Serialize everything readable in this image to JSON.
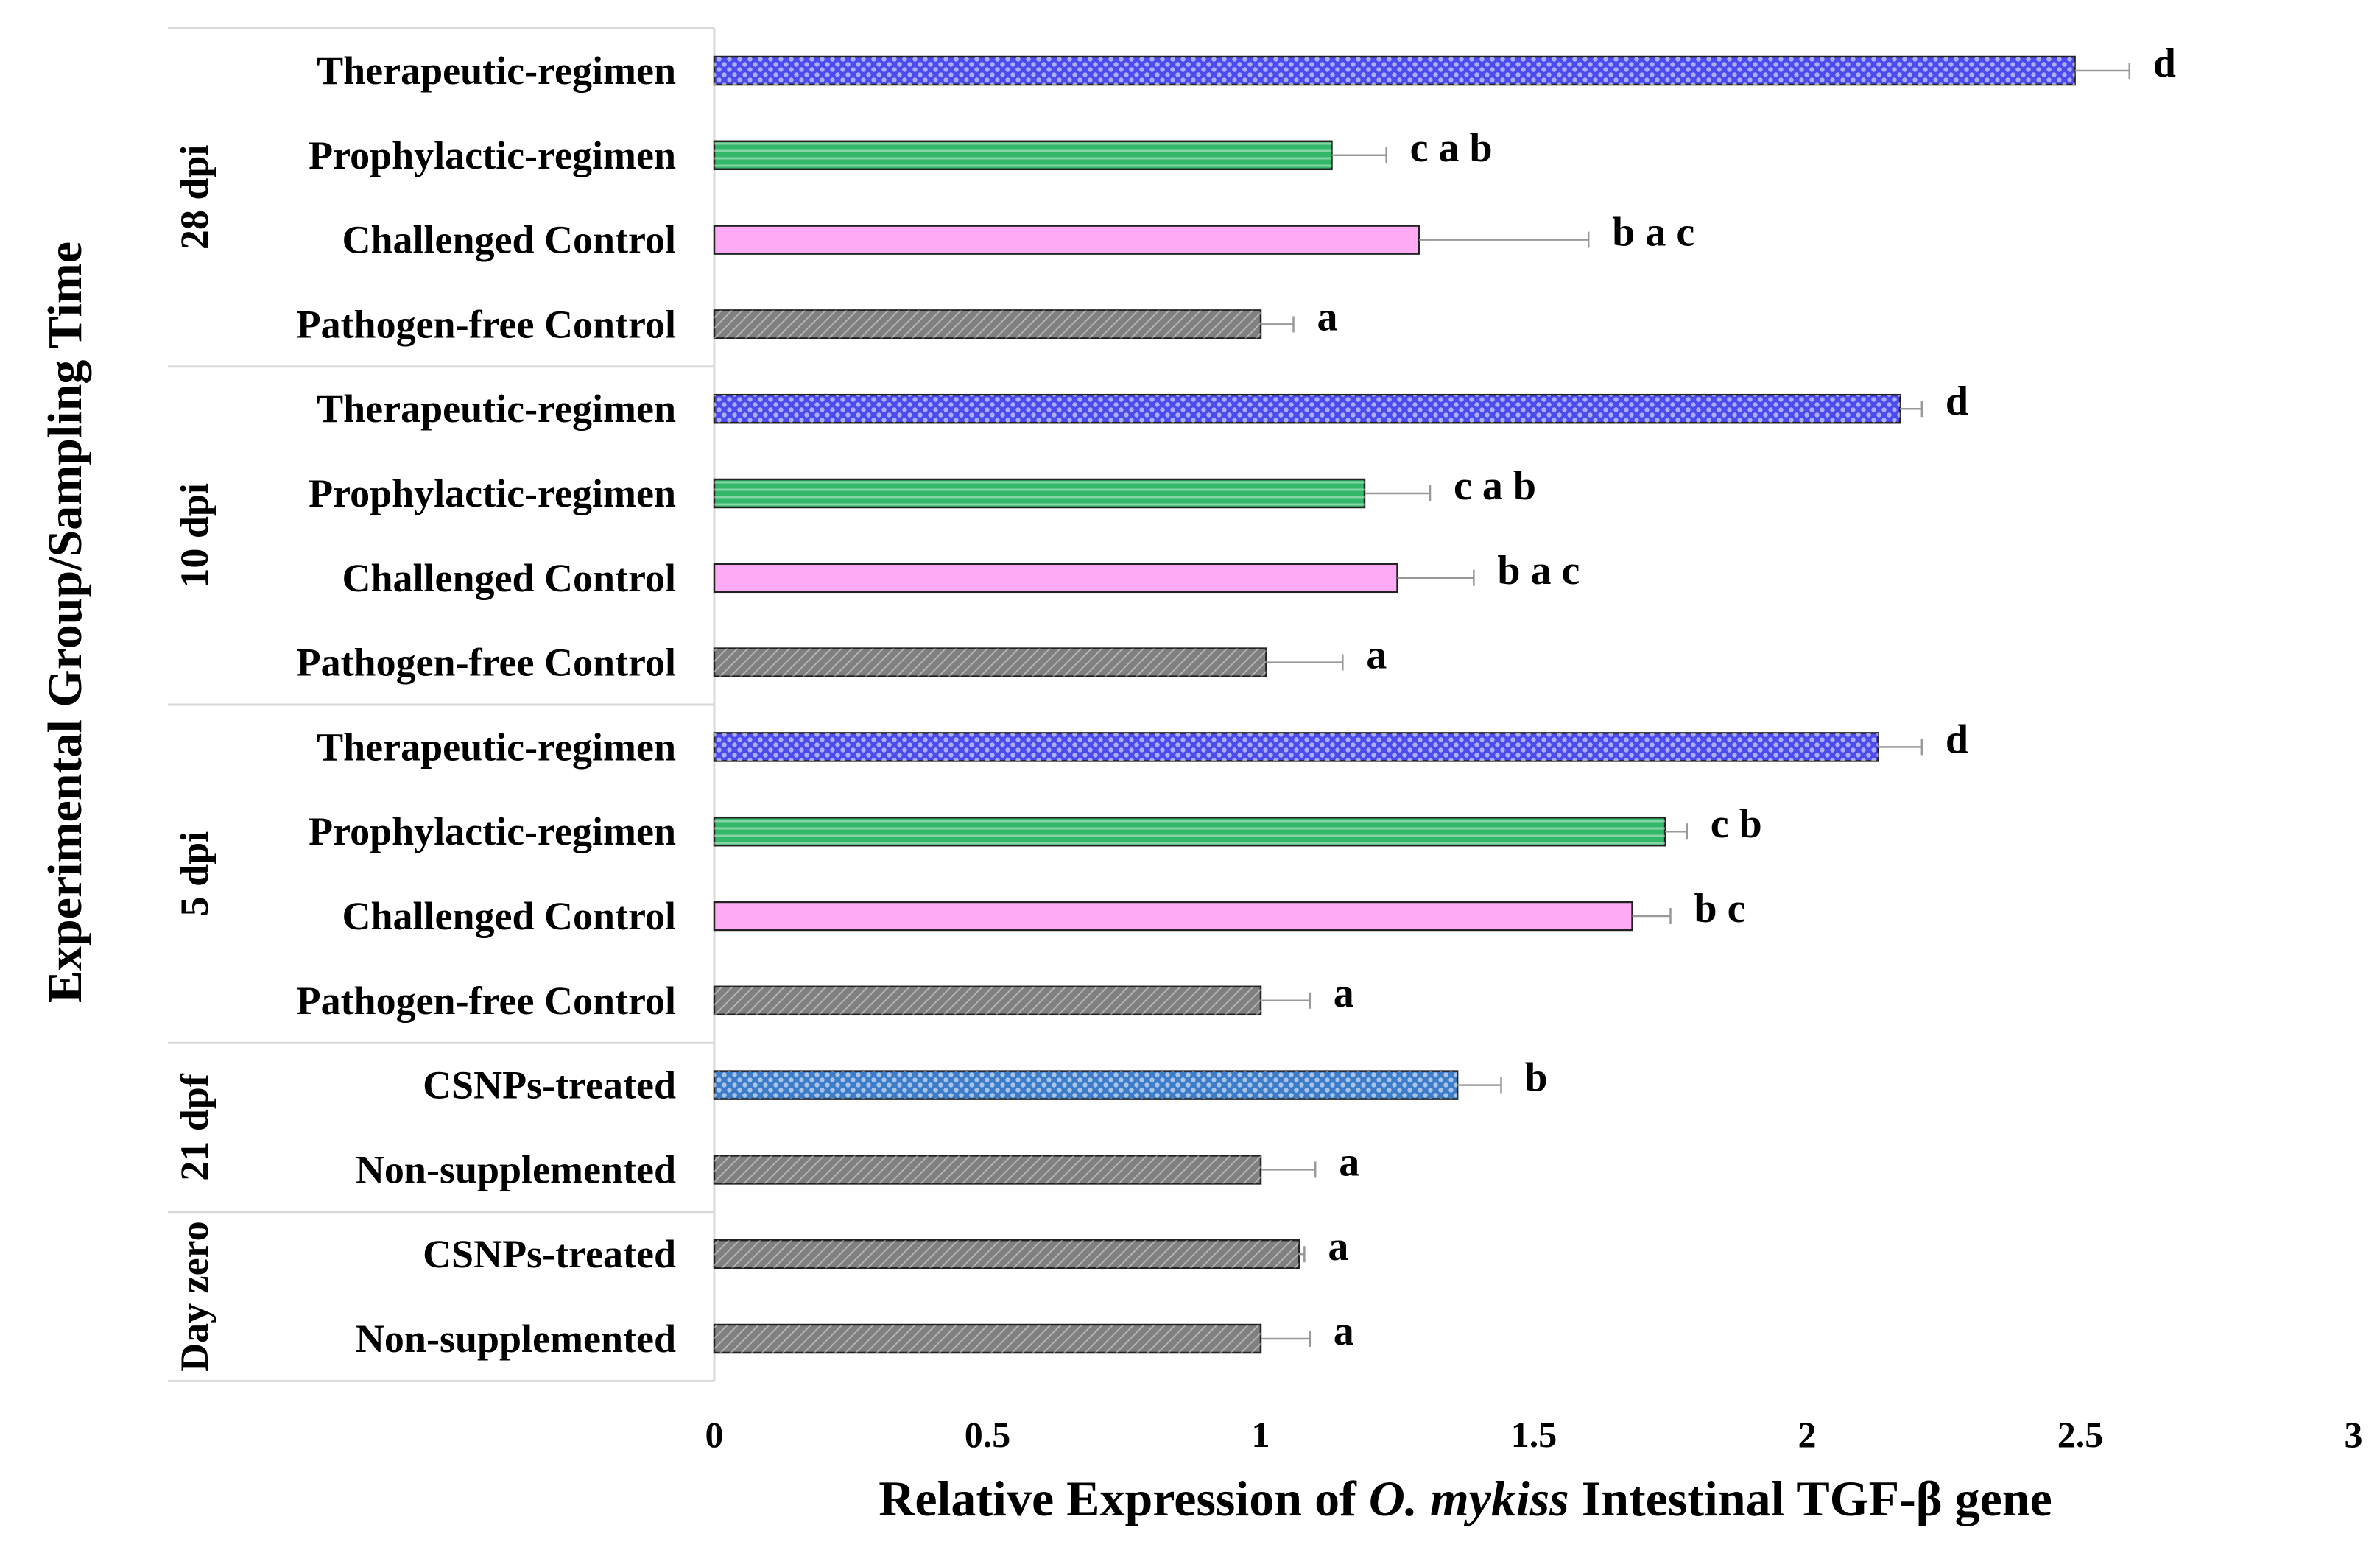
{
  "chart_data": {
    "type": "bar",
    "orientation": "horizontal",
    "title": "",
    "xlabel_parts": [
      {
        "text": "Relative Expression of ",
        "italic": false
      },
      {
        "text": "O. mykiss",
        "italic": true
      },
      {
        "text": " Intestinal TGF-β gene",
        "italic": false
      }
    ],
    "ylabel": "Experimental Group/Sampling Time",
    "xlim": [
      0,
      3
    ],
    "xticks": [
      "0",
      "0.5",
      "1",
      "1.5",
      "2",
      "2.5",
      "3"
    ],
    "grid": false,
    "legend": "none",
    "groups": [
      {
        "label": "28 dpi",
        "bars": [
          {
            "category": "Therapeutic-regimen",
            "value": 2.49,
            "error": 0.1,
            "letters": "d",
            "color": "#4b4bf0",
            "pattern": "dots"
          },
          {
            "category": "Prophylactic-regimen",
            "value": 1.13,
            "error": 0.1,
            "letters": "c a b",
            "color": "#33b86a",
            "pattern": "lines"
          },
          {
            "category": "Challenged Control",
            "value": 1.29,
            "error": 0.31,
            "letters": "b a c",
            "color": "#ffaaf5",
            "pattern": "none"
          },
          {
            "category": "Pathogen-free Control",
            "value": 1.0,
            "error": 0.06,
            "letters": "a",
            "color": "#808080",
            "pattern": "diag"
          }
        ]
      },
      {
        "label": "10 dpi",
        "bars": [
          {
            "category": "Therapeutic-regimen",
            "value": 2.17,
            "error": 0.04,
            "letters": "d",
            "color": "#4b4bf0",
            "pattern": "dots"
          },
          {
            "category": "Prophylactic-regimen",
            "value": 1.19,
            "error": 0.12,
            "letters": "c a b",
            "color": "#33b86a",
            "pattern": "lines"
          },
          {
            "category": "Challenged Control",
            "value": 1.25,
            "error": 0.14,
            "letters": "b a c",
            "color": "#ffaaf5",
            "pattern": "none"
          },
          {
            "category": "Pathogen-free Control",
            "value": 1.01,
            "error": 0.14,
            "letters": "a",
            "color": "#808080",
            "pattern": "diag"
          }
        ]
      },
      {
        "label": "5 dpi",
        "bars": [
          {
            "category": "Therapeutic-regimen",
            "value": 2.13,
            "error": 0.08,
            "letters": "d",
            "color": "#4b4bf0",
            "pattern": "dots"
          },
          {
            "category": "Prophylactic-regimen",
            "value": 1.74,
            "error": 0.04,
            "letters": "c b",
            "color": "#33b86a",
            "pattern": "lines"
          },
          {
            "category": "Challenged Control",
            "value": 1.68,
            "error": 0.07,
            "letters": "b c",
            "color": "#ffaaf5",
            "pattern": "none"
          },
          {
            "category": "Pathogen-free Control",
            "value": 1.0,
            "error": 0.09,
            "letters": "a",
            "color": "#808080",
            "pattern": "diag"
          }
        ]
      },
      {
        "label": "21 dpf",
        "bars": [
          {
            "category": "CSNPs-treated",
            "value": 1.36,
            "error": 0.08,
            "letters": "b",
            "color": "#3d7cc9",
            "pattern": "dots"
          },
          {
            "category": "Non-supplemented",
            "value": 1.0,
            "error": 0.1,
            "letters": "a",
            "color": "#808080",
            "pattern": "diag"
          }
        ]
      },
      {
        "label": "Day zero",
        "bars": [
          {
            "category": "CSNPs-treated",
            "value": 1.07,
            "error": 0.01,
            "letters": "a",
            "color": "#808080",
            "pattern": "diag"
          },
          {
            "category": "Non-supplemented",
            "value": 1.0,
            "error": 0.09,
            "letters": "a",
            "color": "#808080",
            "pattern": "diag"
          }
        ]
      }
    ]
  }
}
